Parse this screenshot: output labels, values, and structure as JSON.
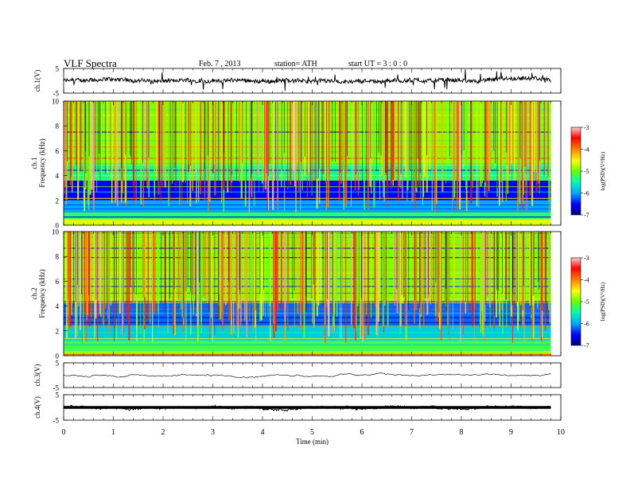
{
  "header": {
    "title": "VLF  Spectra",
    "date": "Feb. 7  , 2013",
    "station": "station= ATH",
    "start": "start  UT  =    3  : 0  : 0"
  },
  "chart_data": [
    {
      "type": "line",
      "panel": "ch1-waveform",
      "ylabel": "ch.1(V)",
      "ylim": [
        -5,
        5
      ],
      "yticks": [
        "5",
        "-5"
      ],
      "baseline": 0.0,
      "noise_amplitude": 0.8
    },
    {
      "type": "heatmap",
      "panel": "ch1-spectrogram",
      "ylabel": "Frequency  (kHz)",
      "ylabel2": "ch.1",
      "ylim": [
        0,
        10
      ],
      "yticks": [
        "0",
        "2",
        "4",
        "6",
        "8",
        "10"
      ],
      "xlim": [
        0,
        9.8
      ],
      "colorbar": {
        "label": "log(PSD)(V²/Hz)",
        "ticks": [
          "-3",
          "-4",
          "-5",
          "-6",
          "-7"
        ],
        "range": [
          -7,
          -3
        ],
        "colors": [
          "#000080",
          "#0000ff",
          "#00aaff",
          "#00ffaa",
          "#66ff00",
          "#ffff00",
          "#ff8000",
          "#ff0000",
          "#ffcccc"
        ]
      },
      "bands": [
        {
          "f0": 0.0,
          "f1": 0.5,
          "level": -4.6
        },
        {
          "f0": 0.5,
          "f1": 1.0,
          "level": -5.3
        },
        {
          "f0": 1.0,
          "f1": 2.0,
          "level": -6.0
        },
        {
          "f0": 2.0,
          "f1": 3.6,
          "level": -6.5
        },
        {
          "f0": 3.6,
          "f1": 5.0,
          "level": -5.4
        },
        {
          "f0": 5.0,
          "f1": 10.0,
          "level": -4.9
        }
      ]
    },
    {
      "type": "heatmap",
      "panel": "ch2-spectrogram",
      "ylabel": "Frequency  (kHz)",
      "ylabel2": "ch.2",
      "ylim": [
        0,
        10
      ],
      "yticks": [
        "0",
        "2",
        "4",
        "6",
        "8",
        "10"
      ],
      "xlim": [
        0,
        9.8
      ],
      "colorbar": {
        "label": "log(PSD)(V²/Hz)",
        "ticks": [
          "-3",
          "-4",
          "-5",
          "-6",
          "-7"
        ],
        "range": [
          -7,
          -3
        ],
        "colors": [
          "#000080",
          "#0000ff",
          "#00aaff",
          "#00ffaa",
          "#66ff00",
          "#ffff00",
          "#ff8000",
          "#ff0000",
          "#ffcccc"
        ]
      },
      "bands": [
        {
          "f0": 0.0,
          "f1": 0.5,
          "level": -4.8
        },
        {
          "f0": 0.5,
          "f1": 1.2,
          "level": -5.2
        },
        {
          "f0": 1.2,
          "f1": 2.4,
          "level": -5.8
        },
        {
          "f0": 2.4,
          "f1": 4.4,
          "level": -6.2
        },
        {
          "f0": 4.4,
          "f1": 10.0,
          "level": -4.9
        }
      ]
    },
    {
      "type": "line",
      "panel": "ch3-waveform",
      "ylabel": "ch.3(V)",
      "ylim": [
        -5,
        5
      ],
      "yticks": [
        "5",
        "-5"
      ],
      "baseline": 0.0,
      "noise_amplitude": 0.06
    },
    {
      "type": "line",
      "panel": "ch4-waveform",
      "ylabel": "ch.4(V)",
      "ylim": [
        -5,
        5
      ],
      "yticks": [
        "5",
        "-5"
      ],
      "baseline": 0.0,
      "noise_amplitude": 0.35
    }
  ],
  "xaxis": {
    "label": "Time  (min)",
    "ticks": [
      "0",
      "1",
      "2",
      "3",
      "4",
      "5",
      "6",
      "7",
      "8",
      "9",
      "10"
    ],
    "xlim": [
      0,
      10
    ]
  }
}
